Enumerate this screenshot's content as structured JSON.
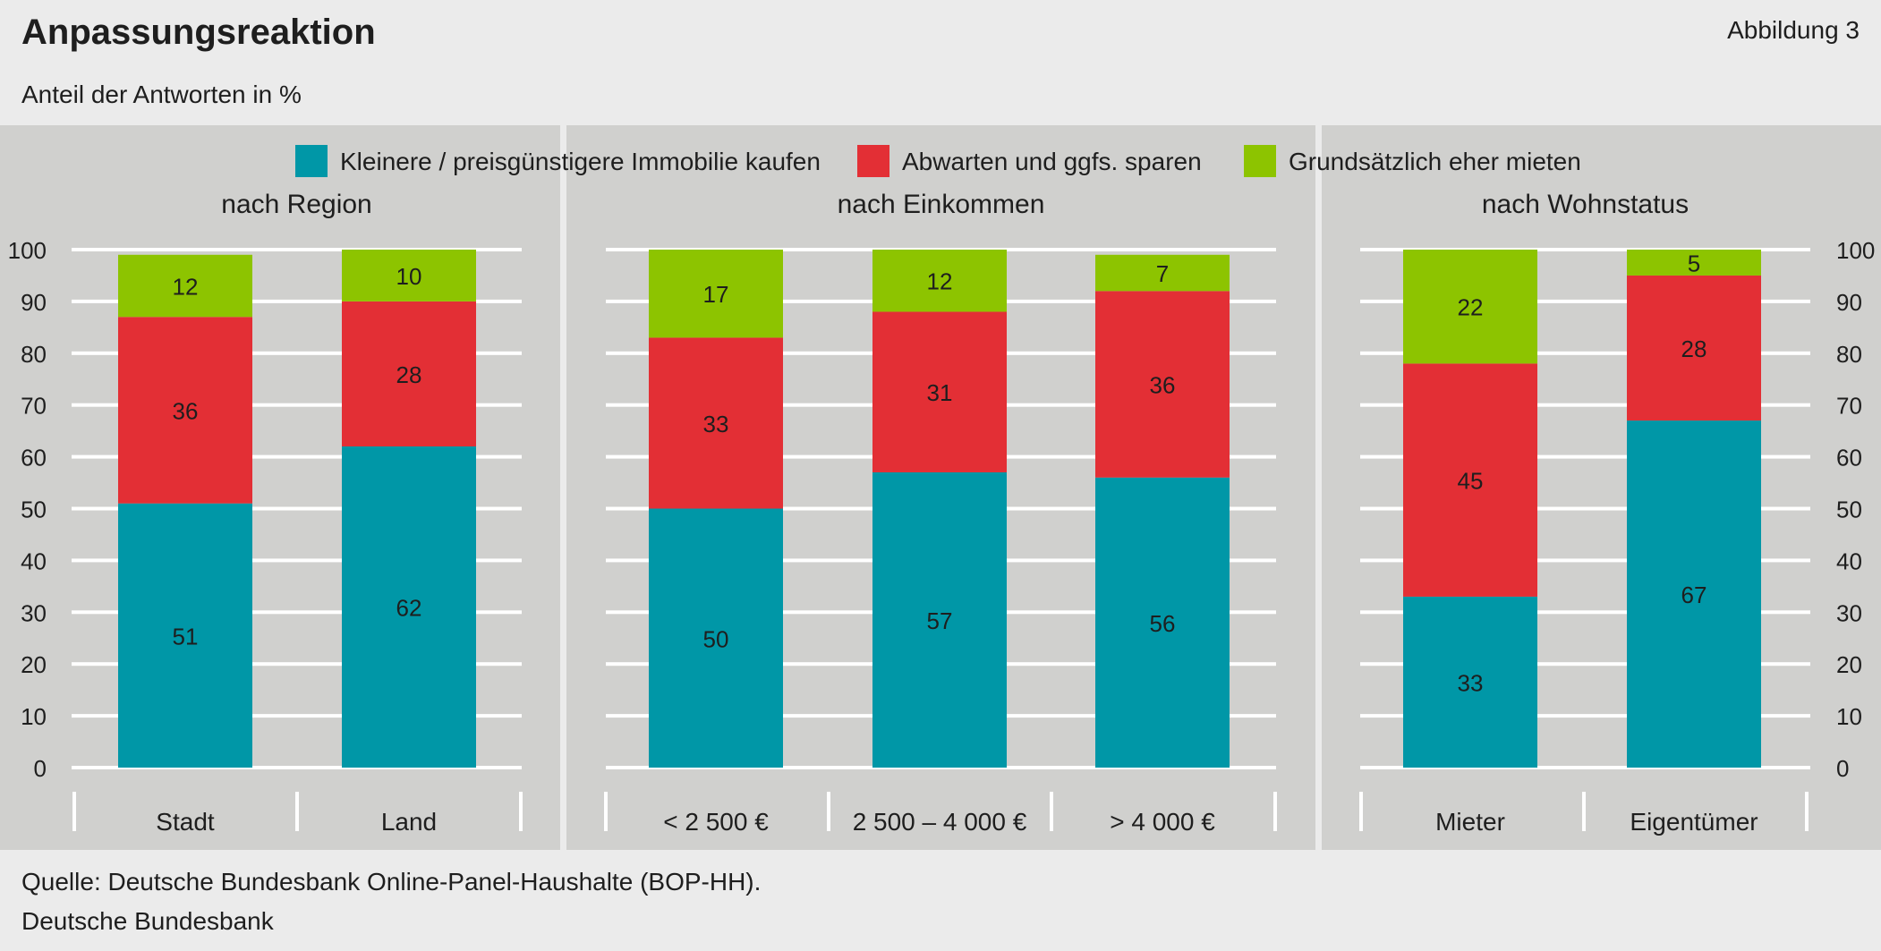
{
  "figure": {
    "title": "Anpassungsreaktion",
    "figure_number": "Abbildung 3",
    "subtitle": "Anteil der Antworten in %",
    "source": "Quelle: Deutsche Bundesbank Online-Panel-Haushalte (BOP-HH).",
    "publisher": "Deutsche Bundesbank"
  },
  "colors": {
    "page_background": "#ebebeb",
    "plot_background": "#d0d0ce",
    "gridline": "#ffffff",
    "text": "#1e1e1e"
  },
  "chart_data": [
    {
      "type": "bar",
      "stacked": true,
      "title": "nach Region",
      "categories": [
        "Stadt",
        "Land"
      ],
      "series": [
        {
          "name": "Kleinere / preisgünstigere Immobilie kaufen",
          "color": "#0097a7",
          "values": [
            51,
            62
          ]
        },
        {
          "name": "Abwarten und ggfs. sparen",
          "color": "#e32f35",
          "values": [
            36,
            28
          ]
        },
        {
          "name": "Grundsätzlich eher mieten",
          "color": "#8dc400",
          "values": [
            12,
            10
          ]
        }
      ],
      "ylim": [
        0,
        100
      ],
      "yticks": [
        0,
        10,
        20,
        30,
        40,
        50,
        60,
        70,
        80,
        90,
        100
      ],
      "yaxis_position": "left",
      "grid": true,
      "legend": "top"
    },
    {
      "type": "bar",
      "stacked": true,
      "title": "nach Einkommen",
      "categories": [
        "< 2 500 €",
        "2 500 – 4 000 €",
        "> 4 000 €"
      ],
      "series": [
        {
          "name": "Kleinere / preisgünstigere Immobilie kaufen",
          "color": "#0097a7",
          "values": [
            50,
            57,
            56
          ]
        },
        {
          "name": "Abwarten und ggfs. sparen",
          "color": "#e32f35",
          "values": [
            33,
            31,
            36
          ]
        },
        {
          "name": "Grundsätzlich eher mieten",
          "color": "#8dc400",
          "values": [
            17,
            12,
            7
          ]
        }
      ],
      "ylim": [
        0,
        100
      ],
      "grid": true,
      "legend": "top"
    },
    {
      "type": "bar",
      "stacked": true,
      "title": "nach Wohnstatus",
      "categories": [
        "Mieter",
        "Eigentümer"
      ],
      "series": [
        {
          "name": "Kleinere / preisgünstigere Immobilie kaufen",
          "color": "#0097a7",
          "values": [
            33,
            67
          ]
        },
        {
          "name": "Abwarten und ggfs. sparen",
          "color": "#e32f35",
          "values": [
            45,
            28
          ]
        },
        {
          "name": "Grundsätzlich eher mieten",
          "color": "#8dc400",
          "values": [
            22,
            5
          ]
        }
      ],
      "ylim": [
        0,
        100
      ],
      "yticks": [
        0,
        10,
        20,
        30,
        40,
        50,
        60,
        70,
        80,
        90,
        100
      ],
      "yaxis_position": "right",
      "grid": true,
      "legend": "top"
    }
  ]
}
